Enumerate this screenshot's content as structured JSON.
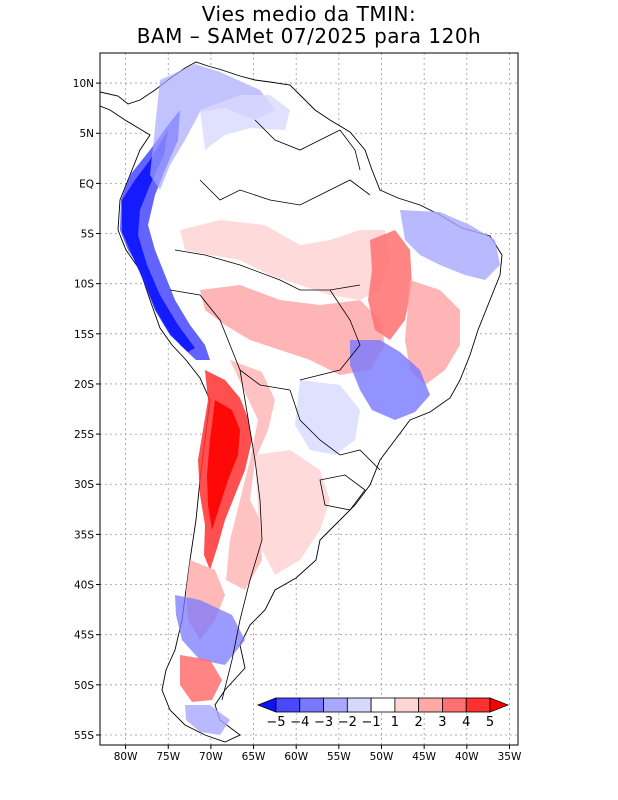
{
  "title": {
    "line1": "Vies medio da TMIN:",
    "line2": "BAM – SAMet 07/2025  para 120h"
  },
  "axes": {
    "lon_labels": [
      "80W",
      "75W",
      "70W",
      "65W",
      "60W",
      "55W",
      "50W",
      "45W",
      "40W",
      "35W"
    ],
    "lat_labels": [
      "10N",
      "5N",
      "EQ",
      "5S",
      "10S",
      "15S",
      "20S",
      "25S",
      "30S",
      "35S",
      "40S",
      "45S",
      "50S",
      "55S"
    ],
    "lon_range": [
      -83,
      -34
    ],
    "lat_range": [
      -56,
      13
    ]
  },
  "colorbar": {
    "labels": [
      "−5",
      "−4",
      "−3",
      "−2",
      "−1",
      "1",
      "2",
      "3",
      "4",
      "5"
    ],
    "colors": [
      "#0b14ff",
      "#4848ff",
      "#7878ff",
      "#a8a8ff",
      "#d8d8ff",
      "#ffffff",
      "#ffd4d4",
      "#ffa8a8",
      "#ff7070",
      "#ff3030",
      "#ff0000"
    ]
  },
  "legend_colors": {
    "land": "#ffffff",
    "grid": "#9a9a9a",
    "coast": "#000000"
  }
}
